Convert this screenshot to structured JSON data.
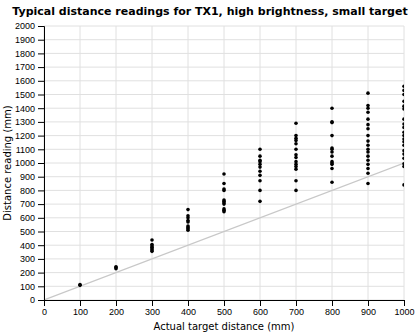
{
  "chart_data": {
    "type": "scatter",
    "title": "Typical distance readings for TX1, high brightness, small target",
    "xlabel": "Actual target distance (mm)",
    "ylabel": "Distance reading (mm)",
    "xlim": [
      0,
      1000
    ],
    "ylim": [
      0,
      2000
    ],
    "xticks": [
      0,
      100,
      200,
      300,
      400,
      500,
      600,
      700,
      800,
      900,
      1000
    ],
    "yticks": [
      0,
      100,
      200,
      300,
      400,
      500,
      600,
      700,
      800,
      900,
      1000,
      1100,
      1200,
      1300,
      1400,
      1500,
      1600,
      1700,
      1800,
      1900,
      2000
    ],
    "grid": true,
    "series": [
      {
        "type": "line",
        "color": "#c8c8c8",
        "x": [
          0,
          1000
        ],
        "values": [
          0,
          1000
        ]
      },
      {
        "type": "scatter",
        "color": "#000000",
        "x": [
          100,
          100,
          200,
          200,
          200,
          300,
          300,
          300,
          300,
          300,
          300,
          300,
          400,
          400,
          400,
          400,
          400,
          400,
          400,
          400,
          400,
          500,
          500,
          500,
          500,
          500,
          500,
          500,
          500,
          500,
          500,
          500,
          600,
          600,
          600,
          600,
          600,
          600,
          600,
          600,
          600,
          600,
          600,
          700,
          700,
          700,
          700,
          700,
          700,
          700,
          700,
          700,
          700,
          700,
          700,
          700,
          700,
          800,
          800,
          800,
          800,
          800,
          800,
          800,
          800,
          800,
          800,
          800,
          800,
          800,
          900,
          900,
          900,
          900,
          900,
          900,
          900,
          900,
          900,
          900,
          900,
          900,
          900,
          900,
          900,
          900,
          900,
          900,
          1000,
          1000,
          1000,
          1000,
          1000,
          1000,
          1000,
          1000,
          1000,
          1000,
          1000,
          1000,
          1000,
          1000,
          1000,
          1000,
          1000,
          1000,
          1000,
          1000
        ],
        "values": [
          107,
          113,
          228,
          237,
          243,
          355,
          365,
          375,
          385,
          395,
          405,
          438,
          510,
          520,
          530,
          540,
          570,
          580,
          600,
          615,
          660,
          645,
          655,
          665,
          700,
          710,
          720,
          730,
          800,
          810,
          850,
          920,
          720,
          800,
          870,
          910,
          940,
          970,
          990,
          1010,
          1020,
          1050,
          1100,
          800,
          870,
          955,
          975,
          990,
          1010,
          1040,
          1060,
          1100,
          1140,
          1165,
          1180,
          1200,
          1290,
          860,
          960,
          990,
          1000,
          1010,
          1050,
          1080,
          1100,
          1110,
          1200,
          1295,
          1300,
          1400,
          850,
          925,
          960,
          990,
          1020,
          1050,
          1080,
          1100,
          1130,
          1160,
          1200,
          1250,
          1280,
          1320,
          1370,
          1400,
          1420,
          1510,
          840,
          975,
          995,
          1035,
          1065,
          1090,
          1130,
          1155,
          1175,
          1200,
          1225,
          1260,
          1285,
          1320,
          1395,
          1415,
          1450,
          1500,
          1530,
          1560
        ]
      }
    ]
  }
}
